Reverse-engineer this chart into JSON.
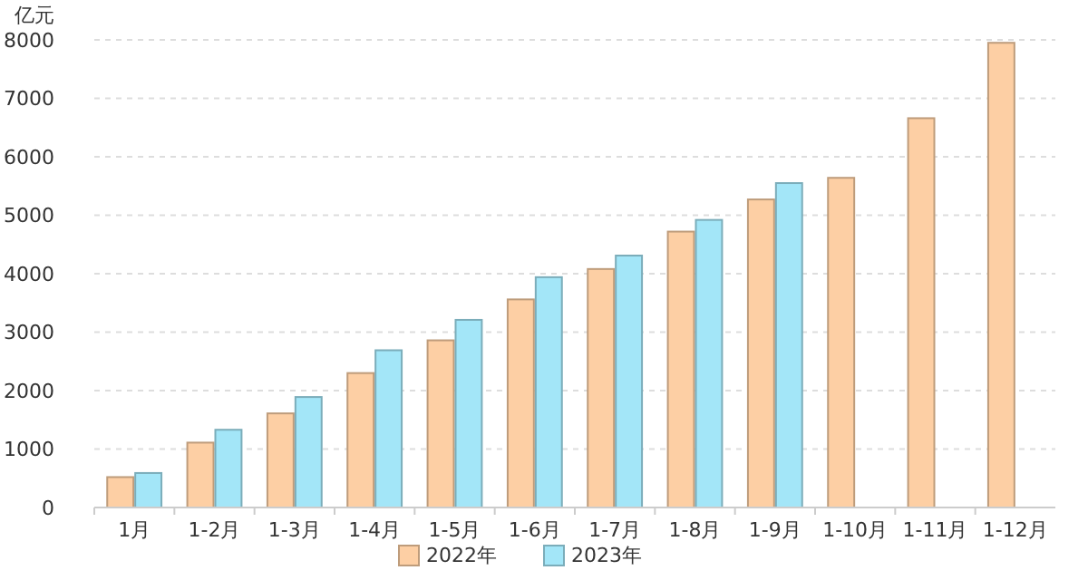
{
  "chart_data": {
    "type": "bar",
    "ylabel": "亿元",
    "categories": [
      "1月",
      "1-2月",
      "1-3月",
      "1-4月",
      "1-5月",
      "1-6月",
      "1-7月",
      "1-8月",
      "1-9月",
      "1-10月",
      "1-11月",
      "1-12月"
    ],
    "series": [
      {
        "name": "2022年",
        "color": "#fdcfa4",
        "values": [
          520,
          1110,
          1610,
          2300,
          2860,
          3560,
          4080,
          4720,
          5270,
          5640,
          6660,
          7950
        ]
      },
      {
        "name": "2023年",
        "color": "#a3e6f8",
        "values": [
          590,
          1330,
          1890,
          2690,
          3210,
          3940,
          4310,
          4920,
          5550,
          null,
          null,
          null
        ]
      }
    ],
    "ylim": [
      0,
      8000
    ],
    "yticks": [
      0,
      1000,
      2000,
      3000,
      4000,
      5000,
      6000,
      7000,
      8000
    ],
    "grid": "y",
    "legend": "bottom"
  }
}
